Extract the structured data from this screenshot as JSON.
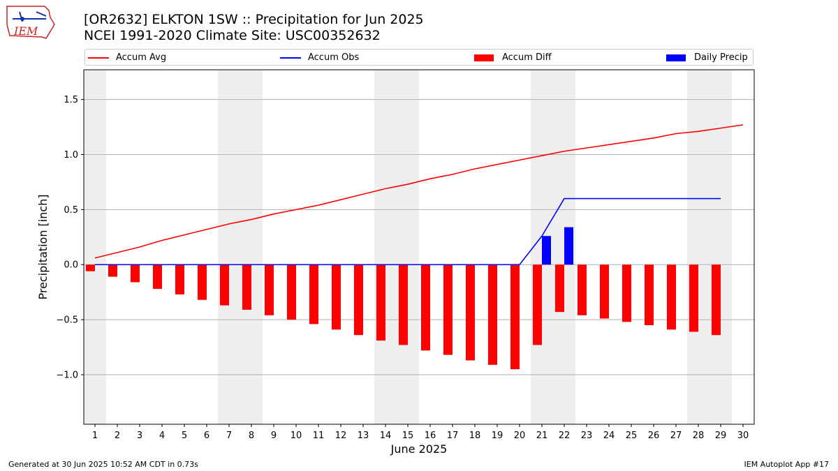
{
  "header": {
    "title_line1": "[OR2632] ELKTON 1SW :: Precipitation for Jun 2025",
    "title_line2": "NCEI 1991-2020 Climate Site: USC00352632"
  },
  "logo": {
    "text": "IEM"
  },
  "footer": {
    "left": "Generated at 30 Jun 2025 10:52 AM CDT in 0.73s",
    "right": "IEM Autoplot App #17"
  },
  "legend": {
    "items": [
      {
        "label": "Accum Avg",
        "kind": "line",
        "color": "#ff0000"
      },
      {
        "label": "Accum Obs",
        "kind": "line",
        "color": "#0000ff"
      },
      {
        "label": "Accum Diff",
        "kind": "box",
        "color": "#ff0000"
      },
      {
        "label": "Daily Precip",
        "kind": "box",
        "color": "#0000ff"
      }
    ]
  },
  "chart_data": {
    "type": "bar",
    "xlabel": "June 2025",
    "ylabel": "Precipitation [inch]",
    "ylim": [
      -1.45,
      1.77
    ],
    "yticks": [
      -1.0,
      -0.5,
      0.0,
      0.5,
      1.0,
      1.5
    ],
    "ytick_labels": [
      "−1.0",
      "−0.5",
      "0.0",
      "0.5",
      "1.0",
      "1.5"
    ],
    "grid": "horizontal",
    "legend_position": "top",
    "days": [
      1,
      2,
      3,
      4,
      5,
      6,
      7,
      8,
      9,
      10,
      11,
      12,
      13,
      14,
      15,
      16,
      17,
      18,
      19,
      20,
      21,
      22,
      23,
      24,
      25,
      26,
      27,
      28,
      29,
      30
    ],
    "weekend_days": [
      1,
      7,
      8,
      14,
      15,
      21,
      22,
      28,
      29
    ],
    "series": [
      {
        "name": "Accum Avg",
        "kind": "line",
        "color": "#ff0000",
        "values": [
          0.06,
          0.11,
          0.16,
          0.22,
          0.27,
          0.32,
          0.37,
          0.41,
          0.46,
          0.5,
          0.54,
          0.59,
          0.64,
          0.69,
          0.73,
          0.78,
          0.82,
          0.87,
          0.91,
          0.95,
          0.99,
          1.03,
          1.06,
          1.09,
          1.12,
          1.15,
          1.19,
          1.21,
          1.24,
          1.27
        ]
      },
      {
        "name": "Accum Obs",
        "kind": "line",
        "color": "#0000ff",
        "values": [
          0,
          0,
          0,
          0,
          0,
          0,
          0,
          0,
          0,
          0,
          0,
          0,
          0,
          0,
          0,
          0,
          0,
          0,
          0,
          0,
          0.26,
          0.6,
          0.6,
          0.6,
          0.6,
          0.6,
          0.6,
          0.6,
          0.6
        ]
      },
      {
        "name": "Accum Diff",
        "kind": "bar",
        "color": "#ff0000",
        "values": [
          -0.06,
          -0.11,
          -0.16,
          -0.22,
          -0.27,
          -0.32,
          -0.37,
          -0.41,
          -0.46,
          -0.5,
          -0.54,
          -0.59,
          -0.64,
          -0.69,
          -0.73,
          -0.78,
          -0.82,
          -0.87,
          -0.91,
          -0.95,
          -0.73,
          -0.43,
          -0.46,
          -0.49,
          -0.52,
          -0.55,
          -0.59,
          -0.61,
          -0.64
        ]
      },
      {
        "name": "Daily Precip",
        "kind": "bar",
        "color": "#0000ff",
        "values": [
          0,
          0,
          0,
          0,
          0,
          0,
          0,
          0,
          0,
          0,
          0,
          0,
          0,
          0,
          0,
          0,
          0,
          0,
          0,
          0,
          0.26,
          0.34,
          0,
          0,
          0,
          0,
          0,
          0,
          0
        ]
      }
    ]
  }
}
